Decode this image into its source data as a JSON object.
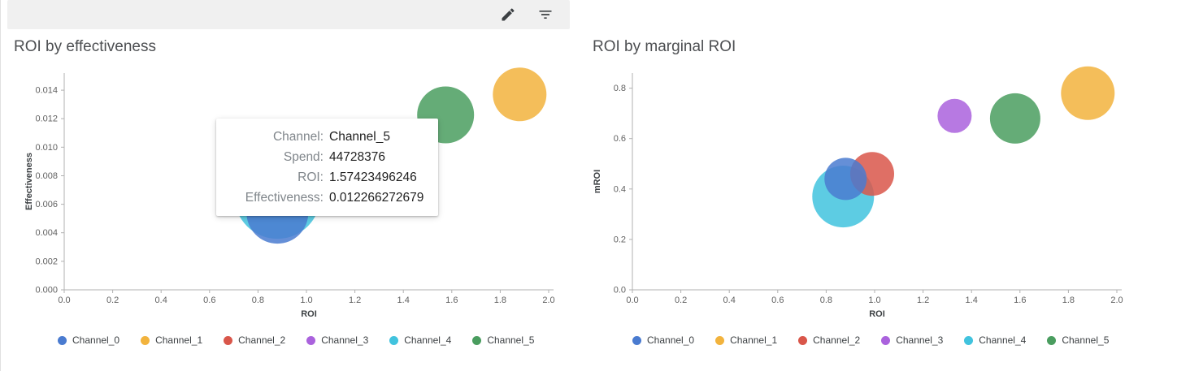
{
  "toolbar": {
    "icons": [
      "edit-icon",
      "filter-icon"
    ]
  },
  "channels": [
    {
      "id": "Channel_0",
      "color": "#4a7bd0"
    },
    {
      "id": "Channel_1",
      "color": "#f2b33d"
    },
    {
      "id": "Channel_2",
      "color": "#d9564a"
    },
    {
      "id": "Channel_3",
      "color": "#aa62dd"
    },
    {
      "id": "Channel_4",
      "color": "#41c3de"
    },
    {
      "id": "Channel_5",
      "color": "#4a9d5f"
    }
  ],
  "tooltip": {
    "rows": [
      {
        "label": "Channel:",
        "value": "Channel_5"
      },
      {
        "label": "Spend:",
        "value": "44728376"
      },
      {
        "label": "ROI:",
        "value": "1.57423496246"
      },
      {
        "label": "Effectiveness:",
        "value": "0.012266272679"
      }
    ]
  },
  "chart_data": [
    {
      "type": "scatter",
      "title": "ROI by effectiveness",
      "xlabel": "ROI",
      "ylabel": "Effectiveness",
      "xlim": [
        0,
        2.02
      ],
      "ylim": [
        0,
        0.0152
      ],
      "xtick_vals": [
        0,
        0.2,
        0.4,
        0.6,
        0.8,
        1.0,
        1.2,
        1.4,
        1.6,
        1.8,
        2.0
      ],
      "xtick_labels": [
        "0.0",
        "0.2",
        "0.4",
        "0.6",
        "0.8",
        "1.0",
        "1.2",
        "1.4",
        "1.6",
        "1.8",
        "2.0"
      ],
      "ytick_vals": [
        0,
        0.002,
        0.004,
        0.006,
        0.008,
        0.01,
        0.012,
        0.014
      ],
      "ytick_labels": [
        "0.000",
        "0.002",
        "0.004",
        "0.006",
        "0.008",
        "0.010",
        "0.012",
        "0.014"
      ],
      "legend_position": "bottom",
      "grid": false,
      "points": [
        {
          "channel": "Channel_4",
          "x": 0.88,
          "y": 0.0066,
          "r": 53
        },
        {
          "channel": "Channel_0",
          "x": 0.88,
          "y": 0.0054,
          "r": 38
        },
        {
          "channel": "Channel_5",
          "x": 1.57423496246,
          "y": 0.012266272679,
          "r": 35
        },
        {
          "channel": "Channel_1",
          "x": 1.88,
          "y": 0.0137,
          "r": 33
        }
      ]
    },
    {
      "type": "scatter",
      "title": "ROI by marginal ROI",
      "xlabel": "ROI",
      "ylabel": "mROI",
      "xlim": [
        0,
        2.02
      ],
      "ylim": [
        0,
        0.86
      ],
      "xtick_vals": [
        0,
        0.2,
        0.4,
        0.6,
        0.8,
        1.0,
        1.2,
        1.4,
        1.6,
        1.8,
        2.0
      ],
      "xtick_labels": [
        "0.0",
        "0.2",
        "0.4",
        "0.6",
        "0.8",
        "1.0",
        "1.2",
        "1.4",
        "1.6",
        "1.8",
        "2.0"
      ],
      "ytick_vals": [
        0,
        0.2,
        0.4,
        0.6,
        0.8
      ],
      "ytick_labels": [
        "0.0",
        "0.2",
        "0.4",
        "0.6",
        "0.8"
      ],
      "legend_position": "bottom",
      "grid": false,
      "points": [
        {
          "channel": "Channel_4",
          "x": 0.87,
          "y": 0.37,
          "r": 38
        },
        {
          "channel": "Channel_2",
          "x": 0.99,
          "y": 0.46,
          "r": 27
        },
        {
          "channel": "Channel_0",
          "x": 0.88,
          "y": 0.44,
          "r": 26
        },
        {
          "channel": "Channel_3",
          "x": 1.33,
          "y": 0.69,
          "r": 21
        },
        {
          "channel": "Channel_5",
          "x": 1.58,
          "y": 0.68,
          "r": 31
        },
        {
          "channel": "Channel_1",
          "x": 1.88,
          "y": 0.78,
          "r": 33
        }
      ]
    }
  ]
}
